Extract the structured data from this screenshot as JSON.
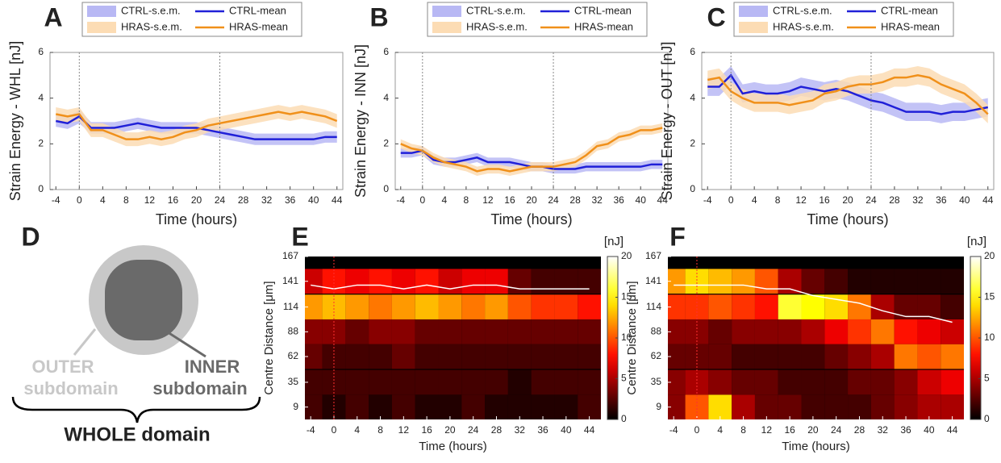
{
  "chart_data": [
    {
      "type": "line",
      "panel": "A",
      "xlabel": "Time (hours)",
      "ylabel": "Strain Energy - WHL [nJ]",
      "x": [
        -4,
        -2,
        0,
        2,
        4,
        6,
        8,
        10,
        12,
        14,
        16,
        18,
        20,
        22,
        24,
        26,
        28,
        30,
        32,
        34,
        36,
        38,
        40,
        42,
        44
      ],
      "xlim": [
        -5,
        45
      ],
      "xticks": [
        -4,
        0,
        4,
        8,
        12,
        16,
        20,
        24,
        28,
        32,
        36,
        40,
        44
      ],
      "ylim": [
        0,
        6
      ],
      "yticks": [
        0,
        2,
        4,
        6
      ],
      "vlines": [
        0,
        24
      ],
      "vline_color": "#888888",
      "series": [
        {
          "name": "CTRL-s.e.m.",
          "style": "band",
          "color": "#b8b8f4",
          "values": [
            0.25,
            0.25,
            0.3,
            0.25,
            0.25,
            0.25,
            0.25,
            0.25,
            0.25,
            0.25,
            0.25,
            0.25,
            0.25,
            0.25,
            0.25,
            0.25,
            0.25,
            0.25,
            0.25,
            0.25,
            0.25,
            0.25,
            0.25,
            0.25,
            0.25
          ]
        },
        {
          "name": "CTRL-mean",
          "style": "line",
          "color": "#2020d8",
          "values": [
            3.0,
            2.9,
            3.2,
            2.7,
            2.7,
            2.7,
            2.8,
            2.9,
            2.8,
            2.7,
            2.7,
            2.7,
            2.7,
            2.6,
            2.5,
            2.4,
            2.3,
            2.2,
            2.2,
            2.2,
            2.2,
            2.2,
            2.2,
            2.3,
            2.3
          ]
        },
        {
          "name": "HRAS-s.e.m.",
          "style": "band",
          "color": "#fcdcb4",
          "values": [
            0.3,
            0.3,
            0.3,
            0.3,
            0.3,
            0.3,
            0.3,
            0.3,
            0.3,
            0.3,
            0.3,
            0.3,
            0.3,
            0.3,
            0.3,
            0.3,
            0.3,
            0.3,
            0.3,
            0.3,
            0.3,
            0.3,
            0.3,
            0.3,
            0.3
          ]
        },
        {
          "name": "HRAS-mean",
          "style": "line",
          "color": "#f0901a",
          "values": [
            3.3,
            3.2,
            3.3,
            2.6,
            2.6,
            2.4,
            2.2,
            2.2,
            2.3,
            2.2,
            2.3,
            2.5,
            2.6,
            2.8,
            2.9,
            3.0,
            3.1,
            3.2,
            3.3,
            3.4,
            3.3,
            3.4,
            3.3,
            3.2,
            3.0
          ]
        }
      ]
    },
    {
      "type": "line",
      "panel": "B",
      "xlabel": "Time (hours)",
      "ylabel": "Strain Energy - INN [nJ]",
      "x": [
        -4,
        -2,
        0,
        2,
        4,
        6,
        8,
        10,
        12,
        14,
        16,
        18,
        20,
        22,
        24,
        26,
        28,
        30,
        32,
        34,
        36,
        38,
        40,
        42,
        44
      ],
      "xlim": [
        -5,
        45
      ],
      "xticks": [
        -4,
        0,
        4,
        8,
        12,
        16,
        20,
        24,
        28,
        32,
        36,
        40,
        44
      ],
      "ylim": [
        0,
        6
      ],
      "yticks": [
        0,
        2,
        4,
        6
      ],
      "vlines": [
        0,
        24
      ],
      "vline_color": "#888888",
      "series": [
        {
          "name": "CTRL-s.e.m.",
          "style": "band",
          "color": "#b8b8f4",
          "values": [
            0.2,
            0.2,
            0.2,
            0.2,
            0.2,
            0.2,
            0.2,
            0.2,
            0.2,
            0.2,
            0.2,
            0.2,
            0.2,
            0.2,
            0.2,
            0.2,
            0.2,
            0.2,
            0.2,
            0.2,
            0.2,
            0.2,
            0.2,
            0.2,
            0.2
          ]
        },
        {
          "name": "CTRL-mean",
          "style": "line",
          "color": "#2020d8",
          "values": [
            1.6,
            1.6,
            1.7,
            1.3,
            1.2,
            1.2,
            1.3,
            1.4,
            1.2,
            1.2,
            1.2,
            1.1,
            1.0,
            1.0,
            0.9,
            0.9,
            0.9,
            1.0,
            1.0,
            1.0,
            1.0,
            1.0,
            1.0,
            1.1,
            1.1
          ]
        },
        {
          "name": "HRAS-s.e.m.",
          "style": "band",
          "color": "#fcdcb4",
          "values": [
            0.2,
            0.2,
            0.2,
            0.2,
            0.2,
            0.2,
            0.2,
            0.2,
            0.2,
            0.2,
            0.2,
            0.2,
            0.2,
            0.2,
            0.2,
            0.2,
            0.2,
            0.2,
            0.2,
            0.2,
            0.2,
            0.2,
            0.2,
            0.2,
            0.2
          ]
        },
        {
          "name": "HRAS-mean",
          "style": "line",
          "color": "#f0901a",
          "values": [
            2.0,
            1.8,
            1.7,
            1.4,
            1.2,
            1.1,
            1.0,
            0.8,
            0.9,
            0.9,
            0.8,
            0.9,
            1.0,
            1.0,
            1.0,
            1.1,
            1.2,
            1.5,
            1.9,
            2.0,
            2.3,
            2.4,
            2.6,
            2.6,
            2.7
          ]
        }
      ]
    },
    {
      "type": "line",
      "panel": "C",
      "xlabel": "Time (hours)",
      "ylabel": "Strain Energy - OUT [nJ]",
      "x": [
        -4,
        -2,
        0,
        2,
        4,
        6,
        8,
        10,
        12,
        14,
        16,
        18,
        20,
        22,
        24,
        26,
        28,
        30,
        32,
        34,
        36,
        38,
        40,
        42,
        44
      ],
      "xlim": [
        -5,
        45
      ],
      "xticks": [
        -4,
        0,
        4,
        8,
        12,
        16,
        20,
        24,
        28,
        32,
        36,
        40,
        44
      ],
      "ylim": [
        0,
        6
      ],
      "yticks": [
        0,
        2,
        4,
        6
      ],
      "vlines": [
        0,
        24
      ],
      "vline_color": "#888888",
      "series": [
        {
          "name": "CTRL-s.e.m.",
          "style": "band",
          "color": "#b8b8f4",
          "values": [
            0.4,
            0.4,
            0.4,
            0.4,
            0.4,
            0.4,
            0.4,
            0.4,
            0.4,
            0.4,
            0.4,
            0.4,
            0.4,
            0.4,
            0.4,
            0.4,
            0.4,
            0.4,
            0.4,
            0.4,
            0.4,
            0.4,
            0.4,
            0.4,
            0.4
          ]
        },
        {
          "name": "CTRL-mean",
          "style": "line",
          "color": "#2020d8",
          "values": [
            4.5,
            4.5,
            5.0,
            4.2,
            4.3,
            4.2,
            4.2,
            4.3,
            4.5,
            4.4,
            4.3,
            4.4,
            4.3,
            4.1,
            3.9,
            3.8,
            3.6,
            3.4,
            3.4,
            3.4,
            3.3,
            3.4,
            3.4,
            3.5,
            3.6
          ]
        },
        {
          "name": "HRAS-s.e.m.",
          "style": "band",
          "color": "#fcdcb4",
          "values": [
            0.4,
            0.4,
            0.4,
            0.4,
            0.4,
            0.4,
            0.4,
            0.4,
            0.4,
            0.4,
            0.4,
            0.4,
            0.4,
            0.4,
            0.4,
            0.4,
            0.4,
            0.4,
            0.4,
            0.4,
            0.4,
            0.4,
            0.4,
            0.4,
            0.4
          ]
        },
        {
          "name": "HRAS-mean",
          "style": "line",
          "color": "#f0901a",
          "values": [
            4.8,
            4.9,
            4.3,
            4.0,
            3.8,
            3.8,
            3.8,
            3.7,
            3.8,
            3.9,
            4.2,
            4.3,
            4.5,
            4.6,
            4.6,
            4.7,
            4.9,
            4.9,
            5.0,
            4.9,
            4.6,
            4.4,
            4.2,
            3.8,
            3.3
          ]
        }
      ]
    },
    {
      "type": "heatmap",
      "panel": "E",
      "xlabel": "Time (hours)",
      "ylabel": "Centre Distance [μm]",
      "x": [
        -4,
        0,
        4,
        8,
        12,
        16,
        20,
        24,
        28,
        32,
        36,
        40,
        44
      ],
      "y": [
        9,
        35,
        62,
        88,
        114,
        141
      ],
      "xlim": [
        -5,
        46
      ],
      "xticks": [
        -4,
        0,
        4,
        8,
        12,
        16,
        20,
        24,
        28,
        32,
        36,
        40,
        44
      ],
      "ylim": [
        -4,
        167
      ],
      "yticks": [
        9,
        35,
        62,
        88,
        114,
        141,
        167
      ],
      "values": [
        [
          2,
          1,
          2,
          1,
          2,
          1,
          1,
          2,
          1,
          1,
          1,
          1,
          2
        ],
        [
          2,
          2,
          2,
          2,
          2,
          2,
          2,
          2,
          2,
          1,
          2,
          2,
          2
        ],
        [
          3,
          2,
          2,
          2,
          3,
          2,
          2,
          2,
          2,
          2,
          2,
          2,
          2
        ],
        [
          4,
          4,
          3,
          4,
          4,
          3,
          3,
          3,
          3,
          3,
          3,
          3,
          3
        ],
        [
          12,
          13,
          12,
          11,
          12,
          13,
          12,
          11,
          12,
          10,
          9,
          9,
          8
        ],
        [
          6,
          8,
          7,
          8,
          7,
          8,
          6,
          7,
          7,
          3,
          2,
          2,
          2
        ]
      ],
      "boundary": [
        137,
        133,
        137,
        137,
        133,
        137,
        133,
        137,
        137,
        133,
        133,
        133,
        133
      ],
      "boundary_color": "#ffffff",
      "vlines": [
        0
      ],
      "vline_color": "#ff3030",
      "clim": [
        0,
        20
      ],
      "cticks": [
        0,
        5,
        10,
        15,
        20
      ],
      "colorbar_label": "[nJ]"
    },
    {
      "type": "heatmap",
      "panel": "F",
      "xlabel": "Time (hours)",
      "ylabel": "Centre Distance [μm]",
      "x": [
        -4,
        0,
        4,
        8,
        12,
        16,
        20,
        24,
        28,
        32,
        36,
        40,
        44
      ],
      "y": [
        9,
        35,
        62,
        88,
        114,
        141
      ],
      "xlim": [
        -5,
        46
      ],
      "xticks": [
        -4,
        0,
        4,
        8,
        12,
        16,
        20,
        24,
        28,
        32,
        36,
        40,
        44
      ],
      "ylim": [
        -4,
        167
      ],
      "yticks": [
        9,
        35,
        62,
        88,
        114,
        141,
        167
      ],
      "values": [
        [
          4,
          10,
          14,
          5,
          3,
          3,
          2,
          2,
          2,
          3,
          4,
          5,
          5
        ],
        [
          4,
          5,
          4,
          3,
          3,
          2,
          2,
          2,
          3,
          3,
          4,
          6,
          7
        ],
        [
          3,
          3,
          3,
          2,
          2,
          2,
          2,
          3,
          4,
          5,
          11,
          10,
          11
        ],
        [
          4,
          4,
          3,
          4,
          4,
          4,
          5,
          7,
          9,
          11,
          8,
          7,
          6
        ],
        [
          9,
          9,
          10,
          9,
          8,
          16,
          15,
          14,
          11,
          5,
          3,
          3,
          2
        ],
        [
          12,
          14,
          13,
          12,
          10,
          5,
          3,
          2,
          1,
          1,
          1,
          1,
          1
        ]
      ],
      "boundary": [
        137,
        137,
        137,
        137,
        133,
        133,
        126,
        122,
        118,
        110,
        104,
        104,
        98
      ],
      "boundary_color": "#ffffff",
      "vlines": [
        0
      ],
      "vline_color": "#ff3030",
      "clim": [
        0,
        20
      ],
      "cticks": [
        0,
        5,
        10,
        15,
        20
      ],
      "colorbar_label": "[nJ]"
    }
  ],
  "diagram": {
    "panel": "D",
    "outer_label": [
      "OUTER",
      "subdomain"
    ],
    "inner_label": [
      "INNER",
      "subdomain"
    ],
    "domain_label": "WHOLE domain"
  }
}
